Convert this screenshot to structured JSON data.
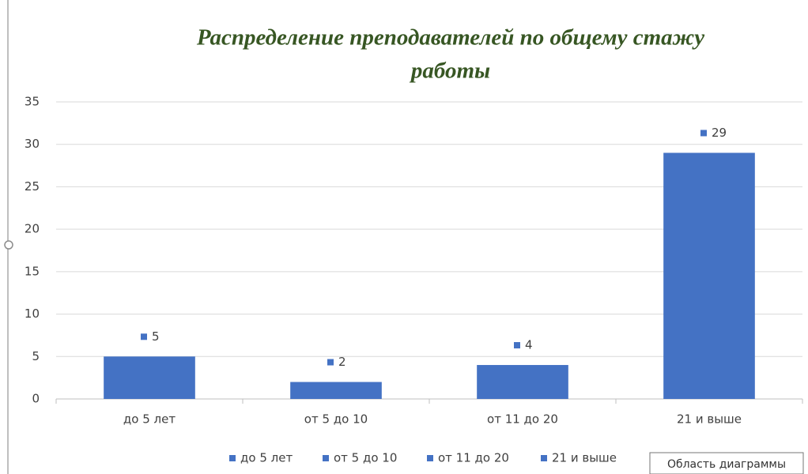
{
  "chart_data": {
    "type": "bar",
    "title": "Распределение  преподавателей по общему стажу работы",
    "title_lines": [
      "Распределение  преподавателей по общему стажу",
      "работы"
    ],
    "categories": [
      "до 5 лет",
      "от 5 до 10",
      "от 11 до 20",
      "21 и выше"
    ],
    "values": [
      5,
      2,
      4,
      29
    ],
    "color": "#4472c4",
    "ylim": [
      0,
      35
    ],
    "yticks": [
      0,
      5,
      10,
      15,
      20,
      25,
      30,
      35
    ],
    "grid": true,
    "legend": "bottom",
    "tooltip": "Область диаграммы"
  }
}
